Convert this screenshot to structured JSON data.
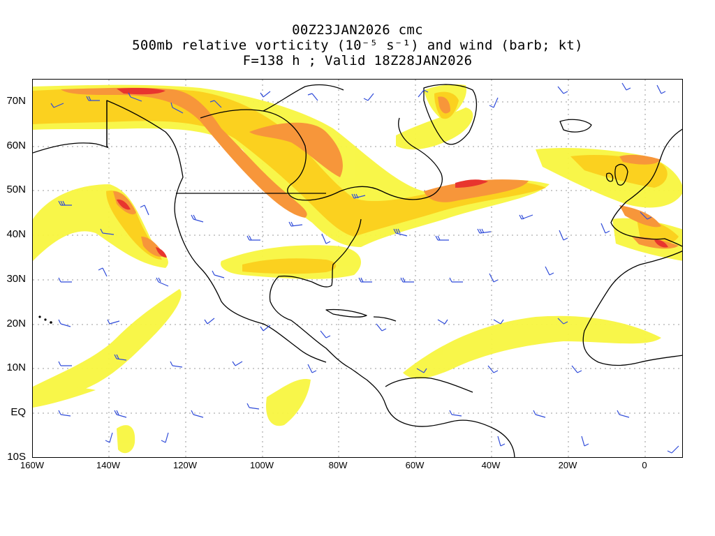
{
  "titles": {
    "line1": "00Z23JAN2026 cmc",
    "line2": "500mb relative vorticity (10⁻⁵ s⁻¹) and wind (barb; kt)",
    "line3": "F=138 h ; Valid 18Z28JAN2026"
  },
  "axes": {
    "lat_labels": [
      "70N",
      "60N",
      "50N",
      "40N",
      "30N",
      "20N",
      "10N",
      "EQ",
      "10S"
    ],
    "lon_labels": [
      "160W",
      "140W",
      "120W",
      "100W",
      "80W",
      "60W",
      "40W",
      "20W",
      "0"
    ]
  },
  "colors": {
    "shade_light": "#f8f640",
    "shade_mid": "#fbd11f",
    "shade_orange": "#f7963a",
    "shade_red": "#e8352e",
    "barb": "#2f4bd9",
    "coast": "#000000",
    "grid": "#9a9a9a"
  },
  "map": {
    "projection": "lat-lon",
    "lon_range": [
      -160,
      10
    ],
    "lat_range": [
      -10,
      75
    ],
    "gridlines": "dotted"
  }
}
